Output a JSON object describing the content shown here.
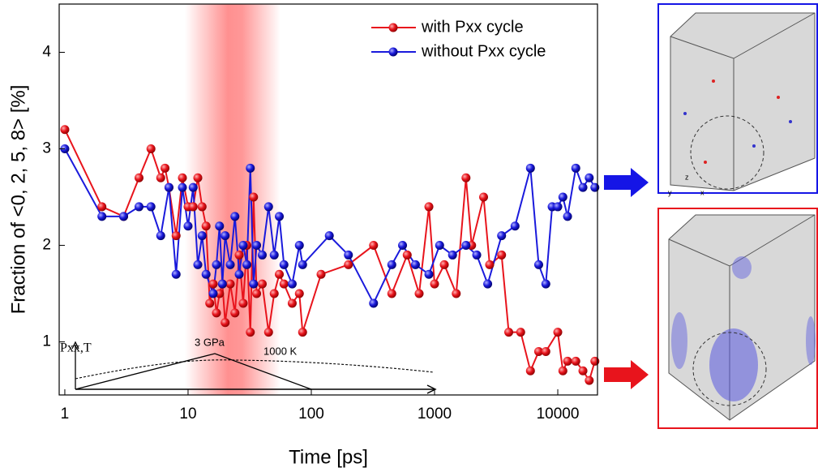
{
  "chart_data": {
    "type": "line",
    "xlabel": "Time [ps]",
    "ylabel": "Fraction of <0, 2, 5, 8> [%]",
    "xscale": "log",
    "xlim": [
      0.9,
      21000
    ],
    "xticks": [
      1,
      10,
      100,
      1000,
      10000
    ],
    "ylim": [
      0.45,
      4.5
    ],
    "yticks": [
      1,
      2,
      3,
      4
    ],
    "legend": "upper right",
    "annotations": [
      "Pxx,T",
      "3 GPa",
      "1000 K"
    ],
    "inset_axis_labels": [
      "z",
      "y",
      "x"
    ],
    "series": [
      {
        "name": "with Pxx cycle",
        "color": "#e8141c",
        "x": [
          1,
          2,
          3,
          4,
          5,
          6,
          6.5,
          7,
          8,
          9,
          10,
          11,
          12,
          13,
          14,
          15,
          16,
          17,
          18,
          19,
          20,
          22,
          24,
          26,
          28,
          30,
          32,
          34,
          36,
          40,
          45,
          50,
          55,
          60,
          70,
          80,
          85,
          120,
          200,
          320,
          450,
          600,
          750,
          900,
          1000,
          1200,
          1500,
          1800,
          2000,
          2500,
          2800,
          3500,
          4000,
          5000,
          6000,
          7000,
          8000,
          10000,
          11000,
          12000,
          14000,
          16000,
          18000,
          20000
        ],
        "values": [
          3.2,
          2.4,
          2.3,
          2.7,
          3.0,
          2.7,
          2.8,
          2.6,
          2.1,
          2.7,
          2.4,
          2.4,
          2.7,
          2.4,
          2.2,
          1.4,
          1.6,
          1.3,
          1.5,
          1.6,
          1.2,
          1.6,
          1.3,
          1.9,
          1.4,
          2.0,
          1.1,
          2.5,
          1.5,
          1.6,
          1.1,
          1.5,
          1.7,
          1.6,
          1.4,
          1.5,
          1.1,
          1.7,
          1.8,
          2.0,
          1.5,
          1.9,
          1.5,
          2.4,
          1.6,
          1.8,
          1.5,
          2.7,
          2.0,
          2.5,
          1.8,
          1.9,
          1.1,
          1.1,
          0.7,
          0.9,
          0.9,
          1.1,
          0.7,
          0.8,
          0.8,
          0.7,
          0.6,
          0.8
        ]
      },
      {
        "name": "without Pxx cycle",
        "color": "#1a1adc",
        "x": [
          1,
          2,
          3,
          4,
          5,
          6,
          7,
          8,
          9,
          10,
          11,
          12,
          13,
          14,
          16,
          17,
          18,
          19,
          20,
          22,
          24,
          26,
          28,
          30,
          32,
          34,
          36,
          40,
          45,
          50,
          55,
          60,
          70,
          80,
          85,
          140,
          200,
          320,
          450,
          550,
          700,
          900,
          1100,
          1400,
          1800,
          2200,
          2700,
          3500,
          4500,
          6000,
          7000,
          8000,
          9000,
          10000,
          11000,
          12000,
          14000,
          16000,
          18000,
          20000
        ],
        "values": [
          3.0,
          2.3,
          2.3,
          2.4,
          2.4,
          2.1,
          2.6,
          1.7,
          2.6,
          2.2,
          2.6,
          1.8,
          2.1,
          1.7,
          1.5,
          1.8,
          2.2,
          1.6,
          2.1,
          1.8,
          2.3,
          1.7,
          2.0,
          1.8,
          2.8,
          1.6,
          2.0,
          1.9,
          2.4,
          1.9,
          2.3,
          1.8,
          1.6,
          2.0,
          1.8,
          2.1,
          1.9,
          1.4,
          1.8,
          2.0,
          1.8,
          1.7,
          2.0,
          1.9,
          2.0,
          1.9,
          1.6,
          2.1,
          2.2,
          2.8,
          1.8,
          1.6,
          2.4,
          2.4,
          2.5,
          2.3,
          2.8,
          2.6,
          2.7,
          2.6
        ]
      }
    ]
  }
}
